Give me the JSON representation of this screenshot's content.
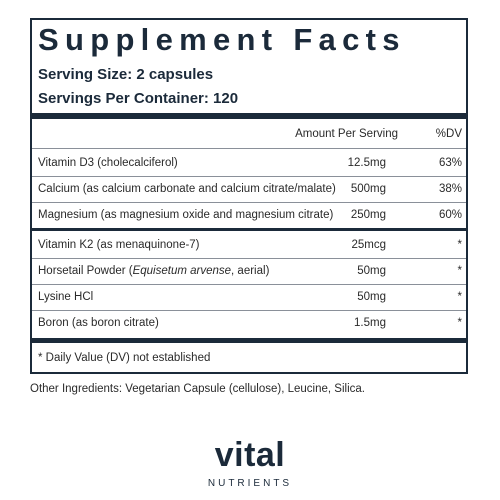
{
  "title": "Supplement Facts",
  "serving_size": "Serving Size: 2 capsules",
  "servings_per_container": "Servings Per Container: 120",
  "header": {
    "amount": "Amount Per Serving",
    "dv": "%DV"
  },
  "rows": [
    {
      "name": "Vitamin D3 (cholecalciferol)",
      "amount": "12.5mg",
      "dv": "63%"
    },
    {
      "name": "Calcium (as calcium carbonate and calcium citrate/malate)",
      "amount": "500mg",
      "dv": "38%"
    },
    {
      "name": "Magnesium (as magnesium oxide and magnesium citrate)",
      "amount": "250mg",
      "dv": "60%"
    },
    {
      "name": "Vitamin K2 (as menaquinone-7)",
      "amount": "25mcg",
      "dv": "*"
    },
    {
      "name": [
        "Horsetail Powder (",
        "Equisetum arvense",
        ", aerial)"
      ],
      "amount": "50mg",
      "dv": "*"
    },
    {
      "name": "Lysine HCl",
      "amount": "50mg",
      "dv": "*"
    },
    {
      "name": "Boron (as boron citrate)",
      "amount": "1.5mg",
      "dv": "*"
    }
  ],
  "footnote": "* Daily Value (DV) not established",
  "other_ingredients": "Other Ingredients: Vegetarian Capsule (cellulose), Leucine, Silica.",
  "brand": {
    "name": "vital",
    "tagline": "NUTRIENTS"
  }
}
